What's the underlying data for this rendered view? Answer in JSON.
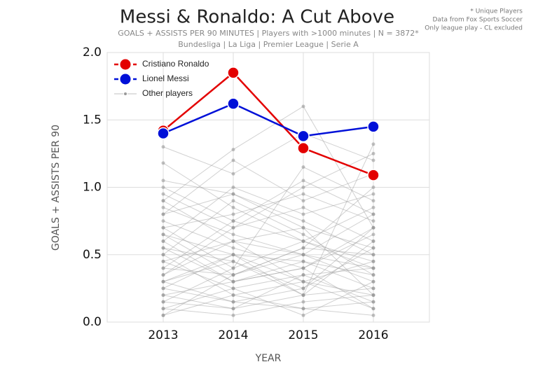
{
  "chart_data": {
    "type": "line",
    "title": "Messi & Ronaldo: A Cut Above",
    "subtitle": "GOALS + ASSISTS PER 90 MINUTES | Players with >1000 minutes | N = 3872*",
    "subtitle2": "Bundesliga | La Liga | Premier League | Serie A",
    "notes": [
      "* Unique Players",
      "Data from Fox Sports Soccer",
      "Only league play - CL excluded"
    ],
    "x_label": "YEAR",
    "y_label": "GOALS + ASSISTS PER 90",
    "x": [
      2013,
      2014,
      2015,
      2016
    ],
    "xlim": [
      2012.2,
      2016.8
    ],
    "xticks": [
      2013,
      2014,
      2015,
      2016
    ],
    "ylim": [
      0,
      2
    ],
    "yticks": [
      {
        "value": 0,
        "label": "0.0"
      },
      0.5,
      {
        "value": 1,
        "label": "1.0"
      },
      1.5,
      {
        "value": 2,
        "label": "2.0"
      }
    ],
    "grid": true,
    "legend": "upper left",
    "series": [
      {
        "name": "Cristiano Ronaldo",
        "color": "#e30000",
        "values": [
          1.42,
          1.85,
          1.29,
          1.09
        ]
      },
      {
        "name": "Lionel Messi",
        "color": "#0010d8",
        "values": [
          1.4,
          1.62,
          1.38,
          1.45
        ]
      }
    ],
    "others": {
      "name": "Other players",
      "color": "#999999",
      "lines": [
        [
          1.18,
          0.85,
          0.6,
          0.4
        ],
        [
          0.9,
          1.28,
          1.6,
          0.7
        ],
        [
          0.3,
          0.5,
          0.2,
          1.32
        ],
        [
          0.7,
          0.4,
          1.15,
          0.9
        ],
        [
          1.05,
          0.95,
          0.75,
          0.5
        ],
        [
          0.2,
          0.1,
          0.35,
          0.15
        ],
        [
          0.45,
          0.6,
          0.5,
          0.8
        ],
        [
          0.1,
          0.25,
          0.05,
          0.3
        ],
        [
          0.8,
          1.2,
          0.9,
          1.1
        ],
        [
          0.55,
          0.3,
          0.45,
          0.25
        ],
        [
          0.35,
          0.7,
          0.85,
          0.6
        ],
        [
          0.65,
          0.5,
          0.3,
          0.2
        ],
        [
          0.15,
          0.4,
          0.6,
          0.45
        ],
        [
          0.95,
          0.7,
          1.0,
          1.25
        ],
        [
          0.25,
          0.15,
          0.1,
          0.05
        ],
        [
          0.5,
          0.9,
          0.65,
          0.35
        ],
        [
          0.75,
          0.55,
          0.4,
          0.7
        ],
        [
          0.05,
          0.2,
          0.3,
          0.1
        ],
        [
          0.4,
          0.35,
          0.55,
          0.5
        ],
        [
          0.6,
          1.0,
          0.8,
          0.95
        ],
        [
          1.3,
          1.1,
          1.4,
          1.2
        ],
        [
          0.3,
          0.45,
          0.25,
          0.55
        ],
        [
          0.85,
          0.65,
          0.5,
          0.3
        ],
        [
          0.2,
          0.3,
          0.4,
          0.65
        ],
        [
          0.7,
          0.8,
          0.95,
          0.75
        ],
        [
          0.1,
          0.05,
          0.15,
          0.2
        ],
        [
          0.45,
          0.25,
          0.35,
          0.4
        ],
        [
          1.0,
          0.75,
          0.6,
          0.85
        ],
        [
          0.35,
          0.6,
          0.7,
          0.2
        ],
        [
          0.55,
          0.45,
          0.2,
          0.6
        ],
        [
          0.25,
          0.5,
          0.45,
          0.35
        ],
        [
          0.65,
          0.35,
          0.55,
          1.0
        ],
        [
          0.15,
          0.1,
          0.2,
          0.25
        ],
        [
          0.9,
          0.6,
          0.3,
          0.45
        ],
        [
          0.4,
          0.75,
          1.05,
          0.8
        ],
        [
          0.5,
          0.2,
          0.1,
          0.15
        ],
        [
          0.8,
          0.95,
          0.7,
          0.55
        ],
        [
          0.05,
          0.35,
          0.5,
          0.4
        ],
        [
          0.6,
          0.3,
          0.4,
          0.1
        ],
        [
          0.3,
          0.15,
          0.25,
          0.7
        ]
      ]
    }
  }
}
